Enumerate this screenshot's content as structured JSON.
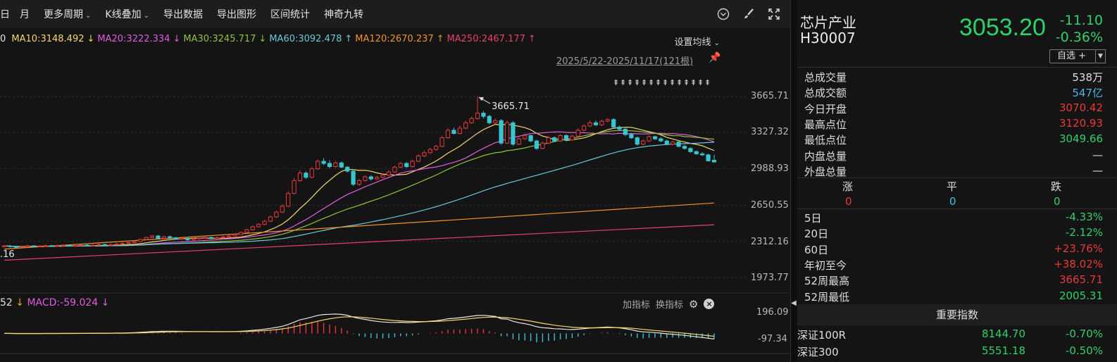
{
  "toolbar": {
    "items": [
      "月",
      "更多周期",
      "K线叠加",
      "导出数据",
      "导出图形",
      "区间统计",
      "神奇九转"
    ]
  },
  "ma_legend": [
    {
      "label": "MA10:3148.492",
      "dir": "↓",
      "color": "#f5d76e"
    },
    {
      "label": "MA20:3222.334",
      "dir": "↓",
      "color": "#e05ce0"
    },
    {
      "label": "MA30:3245.717",
      "dir": "↓",
      "color": "#8fc43c"
    },
    {
      "label": "MA60:3092.478",
      "dir": "↑",
      "color": "#6ac8d8"
    },
    {
      "label": "MA120:2670.237",
      "dir": "↑",
      "color": "#f0932b"
    },
    {
      "label": "MA250:2467.177",
      "dir": "↑",
      "color": "#e8406a"
    }
  ],
  "ma_leading_fragment": "0",
  "ma_settings_label": "设置均线",
  "date_range": "2025/5/22-2025/11/17(121根)",
  "price_axis": [
    "3665.71",
    "3327.32",
    "2988.93",
    "2650.55",
    "2312.16",
    "1973.77"
  ],
  "high_annotation": "3665.71",
  "left_low_annotation": ".16",
  "macd": {
    "lead_fragment": "52",
    "label": "MACD:-59.024",
    "dir": "↓",
    "axis_top": "196.09",
    "axis_bottom": "-97.34",
    "add_indicator": "加指标",
    "switch_indicator": "换指标"
  },
  "stock": {
    "name": "芯片产业",
    "code": "H30007",
    "price": "3053.20",
    "change": "-11.10",
    "change_pct": "-0.36%",
    "watch_label": "自选 +"
  },
  "stats": [
    {
      "k": "总成交量",
      "v": "538万",
      "color": "#dedede"
    },
    {
      "k": "总成交额",
      "v": "547亿",
      "color": "#4fb3e6"
    },
    {
      "k": "今日开盘",
      "v": "3070.42",
      "color": "#e8383b"
    },
    {
      "k": "最高点位",
      "v": "3120.93",
      "color": "#e8383b"
    },
    {
      "k": "最低点位",
      "v": "3049.66",
      "color": "#2ed16b"
    },
    {
      "k": "内盘总量",
      "v": "—",
      "color": "#dedede"
    },
    {
      "k": "外盘总量",
      "v": "—",
      "color": "#dedede"
    }
  ],
  "updown": {
    "headers": [
      "涨",
      "平",
      "跌"
    ],
    "values": [
      "0",
      "0",
      "0"
    ],
    "colors": [
      "#e8383b",
      "#2fc8e0",
      "#2ed16b"
    ]
  },
  "periods": [
    {
      "k": "5日",
      "v": "-4.33%",
      "color": "#2ed16b"
    },
    {
      "k": "20日",
      "v": "-2.12%",
      "color": "#2ed16b"
    },
    {
      "k": "60日",
      "v": "+23.76%",
      "color": "#e8383b"
    },
    {
      "k": "年初至今",
      "v": "+38.02%",
      "color": "#e8383b"
    },
    {
      "k": "52周最高",
      "v": "3665.71",
      "color": "#e8383b"
    },
    {
      "k": "52周最低",
      "v": "2005.31",
      "color": "#2ed16b"
    }
  ],
  "indices_header": "重要指数",
  "indices": [
    {
      "name": "深证100R",
      "price": "8144.70",
      "change": "-0.70%"
    },
    {
      "name": "深证300",
      "price": "5551.18",
      "change": "-0.50%"
    }
  ],
  "chart_data": {
    "type": "candlestick",
    "y_range": [
      1973.77,
      3665.71
    ],
    "candles": [
      [
        2262,
        2270,
        2275,
        2255
      ],
      [
        2268,
        2262,
        2278,
        2256
      ],
      [
        2262,
        2258,
        2270,
        2250
      ],
      [
        2258,
        2264,
        2272,
        2252
      ],
      [
        2264,
        2270,
        2280,
        2258
      ],
      [
        2270,
        2263,
        2275,
        2255
      ],
      [
        2263,
        2268,
        2276,
        2258
      ],
      [
        2268,
        2272,
        2282,
        2262
      ],
      [
        2272,
        2266,
        2278,
        2260
      ],
      [
        2266,
        2270,
        2280,
        2262
      ],
      [
        2270,
        2275,
        2285,
        2265
      ],
      [
        2275,
        2268,
        2280,
        2262
      ],
      [
        2268,
        2272,
        2285,
        2264
      ],
      [
        2272,
        2278,
        2288,
        2268
      ],
      [
        2278,
        2270,
        2282,
        2264
      ],
      [
        2270,
        2275,
        2286,
        2266
      ],
      [
        2275,
        2282,
        2292,
        2270
      ],
      [
        2282,
        2275,
        2290,
        2268
      ],
      [
        2275,
        2280,
        2294,
        2270
      ],
      [
        2280,
        2286,
        2298,
        2276
      ],
      [
        2286,
        2292,
        2305,
        2280
      ],
      [
        2292,
        2300,
        2310,
        2285
      ],
      [
        2300,
        2310,
        2322,
        2295
      ],
      [
        2310,
        2330,
        2338,
        2305
      ],
      [
        2330,
        2348,
        2355,
        2322
      ],
      [
        2348,
        2362,
        2372,
        2340
      ],
      [
        2362,
        2340,
        2370,
        2332
      ],
      [
        2340,
        2355,
        2362,
        2330
      ],
      [
        2355,
        2345,
        2365,
        2336
      ],
      [
        2345,
        2332,
        2352,
        2326
      ],
      [
        2332,
        2340,
        2350,
        2322
      ],
      [
        2340,
        2325,
        2345,
        2318
      ],
      [
        2325,
        2335,
        2345,
        2318
      ],
      [
        2335,
        2342,
        2352,
        2330
      ],
      [
        2342,
        2348,
        2360,
        2338
      ],
      [
        2348,
        2338,
        2356,
        2330
      ],
      [
        2338,
        2346,
        2358,
        2332
      ],
      [
        2346,
        2352,
        2366,
        2340
      ],
      [
        2352,
        2362,
        2372,
        2346
      ],
      [
        2362,
        2375,
        2385,
        2358
      ],
      [
        2375,
        2395,
        2405,
        2370
      ],
      [
        2395,
        2420,
        2430,
        2390
      ],
      [
        2420,
        2448,
        2460,
        2412
      ],
      [
        2448,
        2470,
        2482,
        2440
      ],
      [
        2470,
        2500,
        2512,
        2462
      ],
      [
        2500,
        2540,
        2552,
        2492
      ],
      [
        2540,
        2585,
        2600,
        2532
      ],
      [
        2585,
        2640,
        2660,
        2575
      ],
      [
        2640,
        2760,
        2780,
        2632
      ],
      [
        2760,
        2880,
        2905,
        2750
      ],
      [
        2880,
        2950,
        2975,
        2868
      ],
      [
        2950,
        2910,
        2965,
        2895
      ],
      [
        2910,
        2990,
        3010,
        2900
      ],
      [
        2990,
        3060,
        3075,
        2980
      ],
      [
        3060,
        3040,
        3090,
        3025
      ],
      [
        3040,
        3010,
        3070,
        2995
      ],
      [
        3010,
        3045,
        3065,
        3000
      ],
      [
        3045,
        3005,
        3060,
        2995
      ],
      [
        3005,
        2968,
        3015,
        2955
      ],
      [
        2968,
        2845,
        2980,
        2830
      ],
      [
        2845,
        2880,
        2895,
        2830
      ],
      [
        2880,
        2915,
        2930,
        2870
      ],
      [
        2915,
        2895,
        2930,
        2880
      ],
      [
        2895,
        2910,
        2925,
        2885
      ],
      [
        2910,
        2930,
        2945,
        2900
      ],
      [
        2930,
        2960,
        2975,
        2920
      ],
      [
        2960,
        3005,
        3020,
        2952
      ],
      [
        3005,
        3040,
        3055,
        2995
      ],
      [
        3040,
        3010,
        3055,
        2998
      ],
      [
        3010,
        3060,
        3075,
        3002
      ],
      [
        3060,
        3110,
        3125,
        3052
      ],
      [
        3110,
        3140,
        3160,
        3100
      ],
      [
        3140,
        3170,
        3185,
        3130
      ],
      [
        3170,
        3200,
        3215,
        3160
      ],
      [
        3200,
        3280,
        3295,
        3190
      ],
      [
        3280,
        3350,
        3370,
        3270
      ],
      [
        3350,
        3320,
        3375,
        3310
      ],
      [
        3320,
        3370,
        3395,
        3310
      ],
      [
        3370,
        3420,
        3440,
        3360
      ],
      [
        3420,
        3460,
        3478,
        3410
      ],
      [
        3460,
        3510,
        3665,
        3450
      ],
      [
        3510,
        3480,
        3530,
        3460
      ],
      [
        3480,
        3420,
        3495,
        3405
      ],
      [
        3420,
        3440,
        3460,
        3405
      ],
      [
        3440,
        3230,
        3455,
        3215
      ],
      [
        3230,
        3420,
        3440,
        3220
      ],
      [
        3420,
        3220,
        3435,
        3205
      ],
      [
        3220,
        3270,
        3285,
        3210
      ],
      [
        3270,
        3300,
        3315,
        3260
      ],
      [
        3300,
        3250,
        3310,
        3240
      ],
      [
        3250,
        3180,
        3262,
        3168
      ],
      [
        3180,
        3230,
        3245,
        3172
      ],
      [
        3230,
        3280,
        3295,
        3220
      ],
      [
        3280,
        3250,
        3292,
        3238
      ],
      [
        3250,
        3300,
        3318,
        3242
      ],
      [
        3300,
        3260,
        3312,
        3248
      ],
      [
        3260,
        3295,
        3310,
        3250
      ],
      [
        3295,
        3350,
        3368,
        3288
      ],
      [
        3350,
        3390,
        3405,
        3340
      ],
      [
        3390,
        3420,
        3440,
        3380
      ],
      [
        3420,
        3400,
        3440,
        3390
      ],
      [
        3400,
        3435,
        3450,
        3392
      ],
      [
        3435,
        3450,
        3465,
        3425
      ],
      [
        3450,
        3380,
        3462,
        3370
      ],
      [
        3380,
        3360,
        3392,
        3348
      ],
      [
        3360,
        3310,
        3372,
        3298
      ],
      [
        3310,
        3280,
        3320,
        3268
      ],
      [
        3280,
        3220,
        3292,
        3205
      ],
      [
        3220,
        3250,
        3265,
        3210
      ],
      [
        3250,
        3290,
        3302,
        3240
      ],
      [
        3290,
        3270,
        3300,
        3258
      ],
      [
        3270,
        3250,
        3285,
        3240
      ],
      [
        3250,
        3220,
        3262,
        3210
      ],
      [
        3220,
        3240,
        3252,
        3208
      ],
      [
        3240,
        3200,
        3250,
        3190
      ],
      [
        3200,
        3180,
        3215,
        3170
      ],
      [
        3180,
        3150,
        3192,
        3140
      ],
      [
        3150,
        3130,
        3162,
        3120
      ],
      [
        3130,
        3120,
        3145,
        3110
      ],
      [
        3120,
        3064,
        3130,
        3058
      ],
      [
        3070,
        3053,
        3121,
        3050
      ]
    ],
    "ma_series": [
      {
        "name": "MA10",
        "color": "#f5d76e"
      },
      {
        "name": "MA20",
        "color": "#e05ce0"
      },
      {
        "name": "MA30",
        "color": "#8fc43c"
      },
      {
        "name": "MA60",
        "color": "#6ac8d8"
      },
      {
        "name": "MA120",
        "color": "#f0932b",
        "start": 2240,
        "end": 2670
      },
      {
        "name": "MA250",
        "color": "#e8406a",
        "start": 2135,
        "end": 2467
      }
    ],
    "macd_range": [
      -97.34,
      196.09
    ]
  }
}
